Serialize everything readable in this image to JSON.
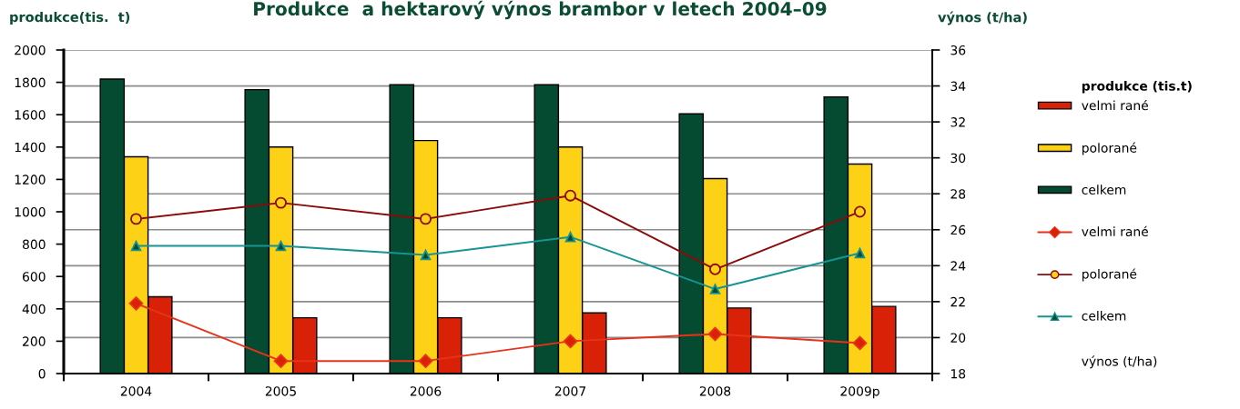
{
  "chart_data": {
    "type": "bar",
    "title": "Produkce  a hektarový výnos brambor v letech 2004–09",
    "ylabel": "produkce(tis.  t)",
    "y2label": "výnos (t/ha)",
    "legend_title": "produkce (tis.t)",
    "annotations": [
      "výnos (t/ha)"
    ],
    "categories": [
      "2004",
      "2005",
      "2006",
      "2007",
      "2008",
      "2009p"
    ],
    "series": [
      {
        "name": "velmi rané",
        "color": "#d92108",
        "values": [
          475,
          345,
          345,
          375,
          405,
          415
        ]
      },
      {
        "name": "polorané",
        "color": "#fcd116",
        "values": [
          1340,
          1400,
          1440,
          1400,
          1205,
          1295
        ]
      },
      {
        "name": "celkem",
        "color": "#054b32",
        "values": [
          1820,
          1755,
          1785,
          1785,
          1605,
          1710
        ]
      },
      {
        "name": "velmi rané",
        "type": "line",
        "axis": "y2",
        "color": "#e8321a",
        "marker": "diamond",
        "values": [
          21.9,
          18.7,
          18.7,
          19.8,
          20.2,
          19.7
        ]
      },
      {
        "name": "polorané",
        "type": "line",
        "axis": "y2",
        "color": "#8b0a0a",
        "marker": "circle",
        "values": [
          26.6,
          27.5,
          26.6,
          27.9,
          23.8,
          27.0
        ]
      },
      {
        "name": "celkem",
        "type": "line",
        "axis": "y2",
        "color": "#169494",
        "marker": "triangle",
        "values": [
          25.1,
          25.1,
          24.6,
          25.6,
          22.7,
          24.7
        ]
      }
    ],
    "ylim": [
      0,
      2000
    ],
    "yticks": [
      0,
      200,
      400,
      600,
      800,
      1000,
      1200,
      1400,
      1600,
      1800,
      2000
    ],
    "y2lim": [
      18,
      36
    ],
    "y2ticks": [
      18,
      20,
      22,
      24,
      26,
      28,
      30,
      32,
      34,
      36
    ],
    "grid": "y2",
    "legend": "right",
    "line_style": "solid"
  }
}
